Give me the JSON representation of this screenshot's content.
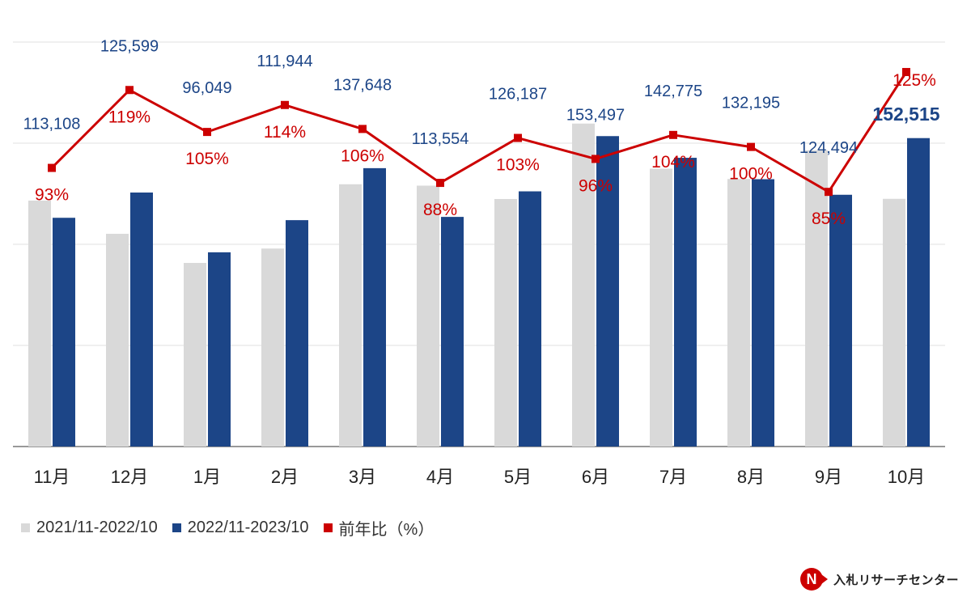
{
  "chart_data": {
    "type": "bar",
    "categories": [
      "11月",
      "12月",
      "1月",
      "2月",
      "3月",
      "4月",
      "5月",
      "6月",
      "7月",
      "8月",
      "9月",
      "10月"
    ],
    "series": [
      {
        "name": "2021/11-2022/10",
        "kind": "bar",
        "color": "#d9d9d9",
        "values": [
          121600,
          105200,
          90800,
          97900,
          129700,
          129000,
          122400,
          159700,
          137400,
          132300,
          146500,
          122500
        ]
      },
      {
        "name": "2022/11-2023/10",
        "kind": "bar",
        "color": "#1c4587",
        "values": [
          113108,
          125599,
          96049,
          111944,
          137648,
          113554,
          126187,
          153497,
          142775,
          132195,
          124494,
          152515
        ],
        "labels": [
          "113,108",
          "125,599",
          "96,049",
          "111,944",
          "137,648",
          "113,554",
          "126,187",
          "153,497",
          "142,775",
          "132,195",
          "124,494",
          "152,515"
        ],
        "label_color": "#1c4587"
      },
      {
        "name": "前年比（%）",
        "kind": "line",
        "color": "#cc0000",
        "values": [
          93,
          119,
          105,
          114,
          106,
          88,
          103,
          96,
          104,
          100,
          85,
          125
        ],
        "labels": [
          "93%",
          "119%",
          "105%",
          "114%",
          "106%",
          "88%",
          "103%",
          "96%",
          "104%",
          "100%",
          "85%",
          "125%"
        ]
      }
    ],
    "ylim": [
      0,
      200000
    ],
    "ylim_secondary": [
      0,
      135
    ],
    "gridlines": true,
    "legend_position": "bottom-left"
  },
  "brand": {
    "name": "入札リサーチセンター",
    "logo_mark": "N"
  }
}
